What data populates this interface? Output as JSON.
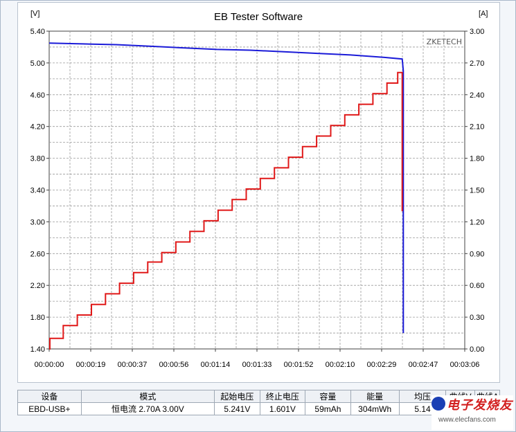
{
  "chart_data": {
    "type": "line",
    "title": "EB Tester Software",
    "brand": "ZKETECH",
    "left_axis": {
      "unit": "[V]",
      "ticks": [
        "5.40",
        "5.00",
        "4.60",
        "4.20",
        "3.80",
        "3.40",
        "3.00",
        "2.60",
        "2.20",
        "1.80",
        "1.40"
      ],
      "ylim": [
        1.4,
        5.4
      ]
    },
    "right_axis": {
      "unit": "[A]",
      "ticks": [
        "3.00",
        "2.70",
        "2.40",
        "2.10",
        "1.80",
        "1.50",
        "1.20",
        "0.90",
        "0.60",
        "0.30",
        "0.00"
      ],
      "ylim": [
        0,
        3.0
      ]
    },
    "x_axis": {
      "ticks": [
        "00:00:00",
        "00:00:19",
        "00:00:37",
        "00:00:56",
        "00:01:14",
        "00:01:33",
        "00:01:52",
        "00:02:10",
        "00:02:29",
        "00:02:47",
        "00:03:06"
      ],
      "xlim_seconds": [
        0,
        186
      ]
    },
    "grid": true,
    "series": [
      {
        "axis": "left",
        "color": "#1a1ad8",
        "points": [
          [
            0,
            5.25
          ],
          [
            15,
            5.24
          ],
          [
            30,
            5.23
          ],
          [
            45,
            5.21
          ],
          [
            60,
            5.19
          ],
          [
            75,
            5.17
          ],
          [
            90,
            5.16
          ],
          [
            105,
            5.14
          ],
          [
            120,
            5.12
          ],
          [
            135,
            5.1
          ],
          [
            150,
            5.07
          ],
          [
            158,
            5.05
          ],
          [
            158.5,
            4.9
          ],
          [
            158.5,
            1.6
          ]
        ]
      },
      {
        "axis": "right",
        "color": "#e01818",
        "steps": [
          [
            0,
            0.0
          ],
          [
            0.3,
            0.1
          ],
          [
            6.3,
            0.22
          ],
          [
            12.6,
            0.32
          ],
          [
            18.9,
            0.42
          ],
          [
            25.2,
            0.52
          ],
          [
            31.5,
            0.62
          ],
          [
            37.8,
            0.72
          ],
          [
            44.1,
            0.82
          ],
          [
            50.4,
            0.91
          ],
          [
            56.7,
            1.01
          ],
          [
            63,
            1.11
          ],
          [
            69.3,
            1.21
          ],
          [
            75.6,
            1.31
          ],
          [
            81.9,
            1.41
          ],
          [
            88.2,
            1.51
          ],
          [
            94.5,
            1.61
          ],
          [
            100.8,
            1.71
          ],
          [
            107.1,
            1.81
          ],
          [
            113.4,
            1.91
          ],
          [
            119.7,
            2.01
          ],
          [
            126,
            2.11
          ],
          [
            132.3,
            2.21
          ],
          [
            138.6,
            2.31
          ],
          [
            144.9,
            2.41
          ],
          [
            151.2,
            2.51
          ],
          [
            156,
            2.61
          ],
          [
            158,
            2.61
          ],
          [
            158,
            1.3
          ]
        ]
      }
    ]
  },
  "table": {
    "headers": [
      "设备",
      "模式",
      "起始电压",
      "终止电压",
      "容量",
      "能量",
      "均压",
      "曲线V",
      "曲线A"
    ],
    "row": [
      "EBD-USB+",
      "恒电流  2.70A  3.00V",
      "5.241V",
      "1.601V",
      "59mAh",
      "304mWh",
      "5.14"
    ]
  },
  "watermark": {
    "logo": "电子发烧友",
    "url": "www.elecfans.com"
  }
}
